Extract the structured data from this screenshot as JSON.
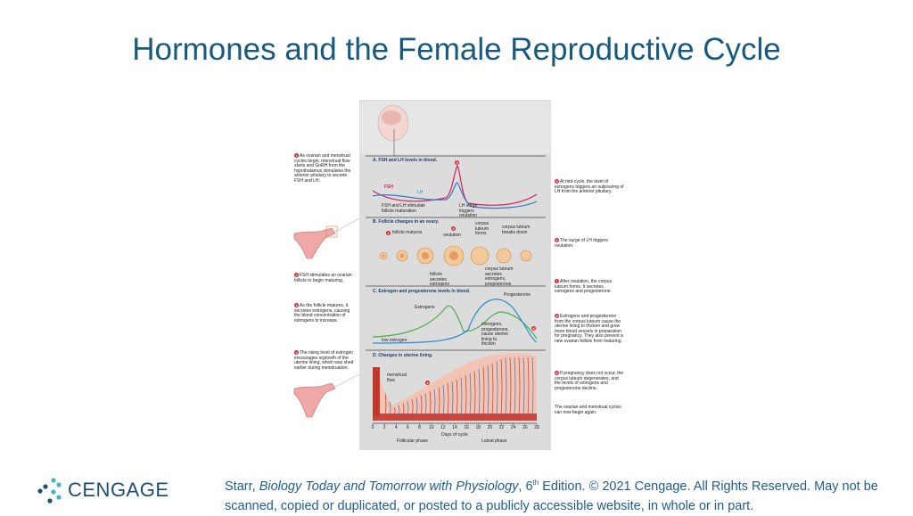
{
  "title": "Hormones and the Female Reproductive Cycle",
  "figure": {
    "left_steps": [
      {
        "number": 1,
        "text": "As ovarian and menstrual cycles begin, menstrual flow starts and GnRH from the hypothalamus stimulates the anterior pituitary to secrete FSH and LH."
      },
      {
        "number": 2,
        "text": "FSH stimulates an ovarian follicle to begin maturing."
      },
      {
        "number": 3,
        "text": "As the follicle matures, it secretes estrogens, causing the blood concentration of estrogens to increase."
      },
      {
        "number": 4,
        "text": "The rising level of estrogen encourages regrowth of the uterine lining, which was shed earlier during menstruation."
      }
    ],
    "right_steps": [
      {
        "number": 5,
        "text": "At mid-cycle, the level of estrogens triggers an outpouring of LH from the anterior pituitary."
      },
      {
        "number": 6,
        "text": "The surge of LH triggers ovulation."
      },
      {
        "number": 7,
        "text": "After ovulation, the corpus luteum forms. It secretes estrogens and progesterone."
      },
      {
        "number": 8,
        "text": "Estrogens and progesterone from the corpus luteum cause the uterine lining to thicken and grow more blood vessels in preparation for pregnancy. They also prevent a new ovarian follicle from maturing."
      },
      {
        "number": 9,
        "text": "If pregnancy does not occur, the corpus luteum degenerates, and the levels of estrogens and progesterone decline."
      }
    ],
    "closing_note": "The ovarian and menstrual cycles can now begin again.",
    "panels": [
      {
        "heading": "A. FSH and LH levels in blood.",
        "labels": [
          "FSH",
          "LH",
          "FSH and LH stimulate follicle maturation",
          "LH surge triggers ovulation"
        ]
      },
      {
        "heading": "B. Follicle changes in an ovary.",
        "labels": [
          "follicle matures",
          "ovulation",
          "corpus luteum forms",
          "corpus luteum breaks down",
          "follicle secretes estrogens",
          "corpus luteum secretes estrogens, progesterone"
        ]
      },
      {
        "heading": "C. Estrogen and progesterone levels in blood.",
        "labels": [
          "Progesterone",
          "Estrogens",
          "low estrogen",
          "estrogens, progesterone, cause uterine lining to thicken"
        ]
      },
      {
        "heading": "D. Changes in uterine lining.",
        "labels": [
          "menstrual flow"
        ]
      }
    ],
    "markers": [
      5,
      2,
      6,
      8,
      4
    ],
    "days": [
      0,
      2,
      4,
      6,
      8,
      10,
      12,
      14,
      16,
      18,
      20,
      22,
      24,
      26,
      28
    ],
    "axis_label": "Days of cycle",
    "phases": [
      "Follicular phase",
      "Luteal phase"
    ]
  },
  "footer": {
    "logo": "CENGAGE",
    "citation": {
      "author": "Starr, ",
      "book": "Biology Today and Tomorrow with Physiology",
      "edition": ", 6",
      "edition_suffix": "th",
      "rest": " Edition. © 2021 Cengage. All Rights Reserved. May not be scanned, copied or duplicated, or posted to a publicly accessible website, in whole or in part."
    }
  }
}
